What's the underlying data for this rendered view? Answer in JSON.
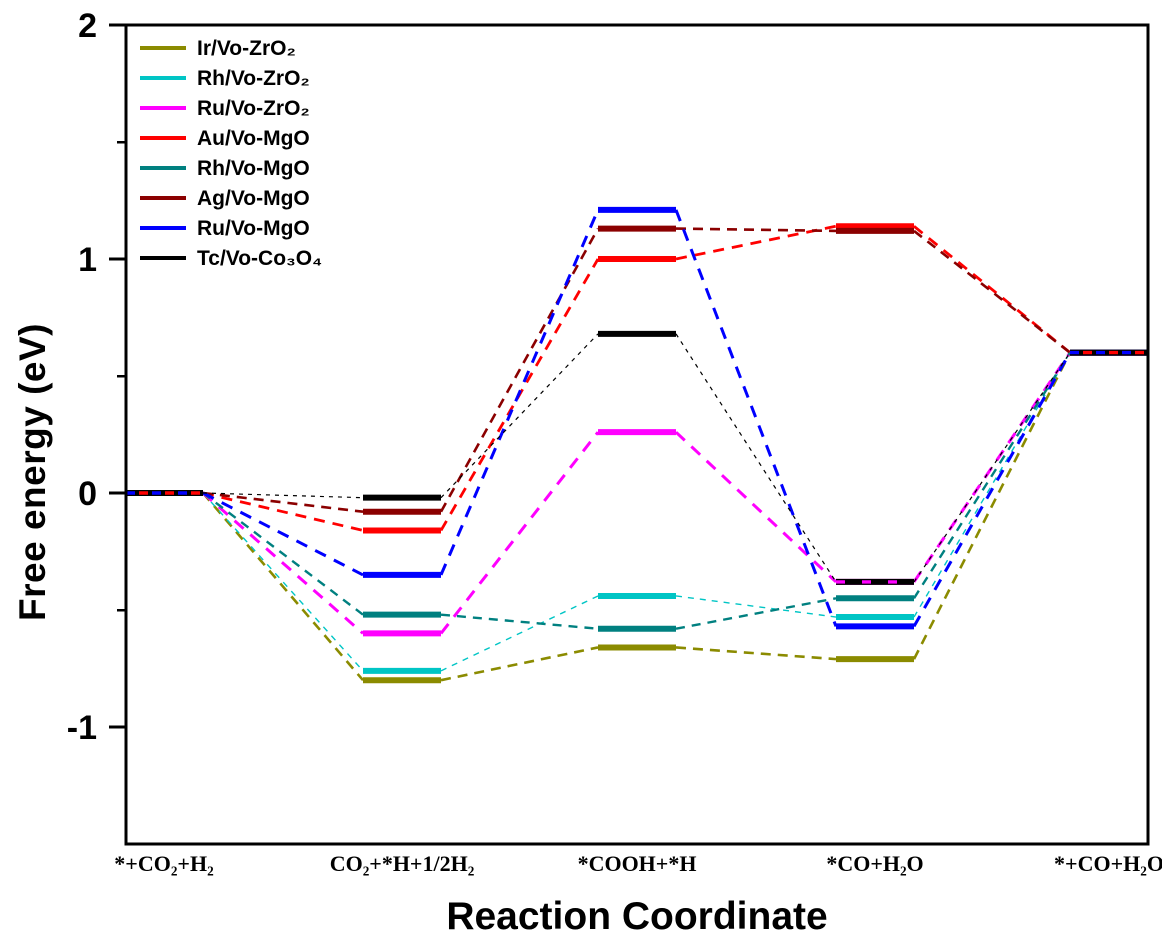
{
  "chart_data": {
    "type": "line",
    "subtype": "free-energy-step-diagram",
    "title": "",
    "xlabel": "Reaction Coordinate",
    "ylabel": "Free energy (eV)",
    "units": "eV",
    "ylim": [
      -1.5,
      2
    ],
    "y_major_ticks": [
      2,
      1,
      0,
      -1
    ],
    "y_minor_ticks": [
      1.5,
      0.5,
      -0.5
    ],
    "grid": false,
    "legend_position": "top-left",
    "axis_color": "#000000",
    "background": "#FFFFFF",
    "categories": [
      "*+CO₂+H₂",
      "CO₂+*H+1/2H₂",
      "*COOH+*H",
      "*CO+H₂O",
      "*+CO+H₂O"
    ],
    "series": [
      {
        "name": "Ir/Vo-ZrO₂",
        "color": "#8B8B00",
        "values": [
          0,
          -0.8,
          -0.66,
          -0.71,
          0.6
        ],
        "connector_width": 2.6,
        "connector_dash": "10,7"
      },
      {
        "name": "Rh/Vo-ZrO₂",
        "color": "#00C5C5",
        "values": [
          0,
          -0.76,
          -0.44,
          -0.53,
          0.6
        ],
        "connector_width": 1.4,
        "connector_dash": "6,6"
      },
      {
        "name": "Ru/Vo-ZrO₂",
        "color": "#FF00FF",
        "values": [
          0,
          -0.6,
          0.26,
          -0.38,
          0.6
        ],
        "connector_width": 3.0,
        "connector_dash": "12,9"
      },
      {
        "name": "Au/Vo-MgO",
        "color": "#FF0000",
        "values": [
          0,
          -0.16,
          1.0,
          1.14,
          0.6
        ],
        "connector_width": 2.8,
        "connector_dash": "11,8"
      },
      {
        "name": "Rh/Vo-MgO",
        "color": "#008080",
        "values": [
          0,
          -0.52,
          -0.58,
          -0.45,
          0.6
        ],
        "connector_width": 2.4,
        "connector_dash": "9,7"
      },
      {
        "name": "Ag/Vo-MgO",
        "color": "#8B0000",
        "values": [
          0,
          -0.08,
          1.13,
          1.12,
          0.6
        ],
        "connector_width": 2.6,
        "connector_dash": "10,7"
      },
      {
        "name": "Ru/Vo-MgO",
        "color": "#0000FF",
        "values": [
          0,
          -0.35,
          1.21,
          -0.57,
          0.6
        ],
        "connector_width": 3.0,
        "connector_dash": "12,9"
      },
      {
        "name": "Tc/Vo-Co₃O₄",
        "color": "#000000",
        "values": [
          0,
          -0.02,
          0.68,
          -0.38,
          0.6
        ],
        "connector_width": 1.2,
        "connector_dash": "4,5"
      }
    ]
  }
}
